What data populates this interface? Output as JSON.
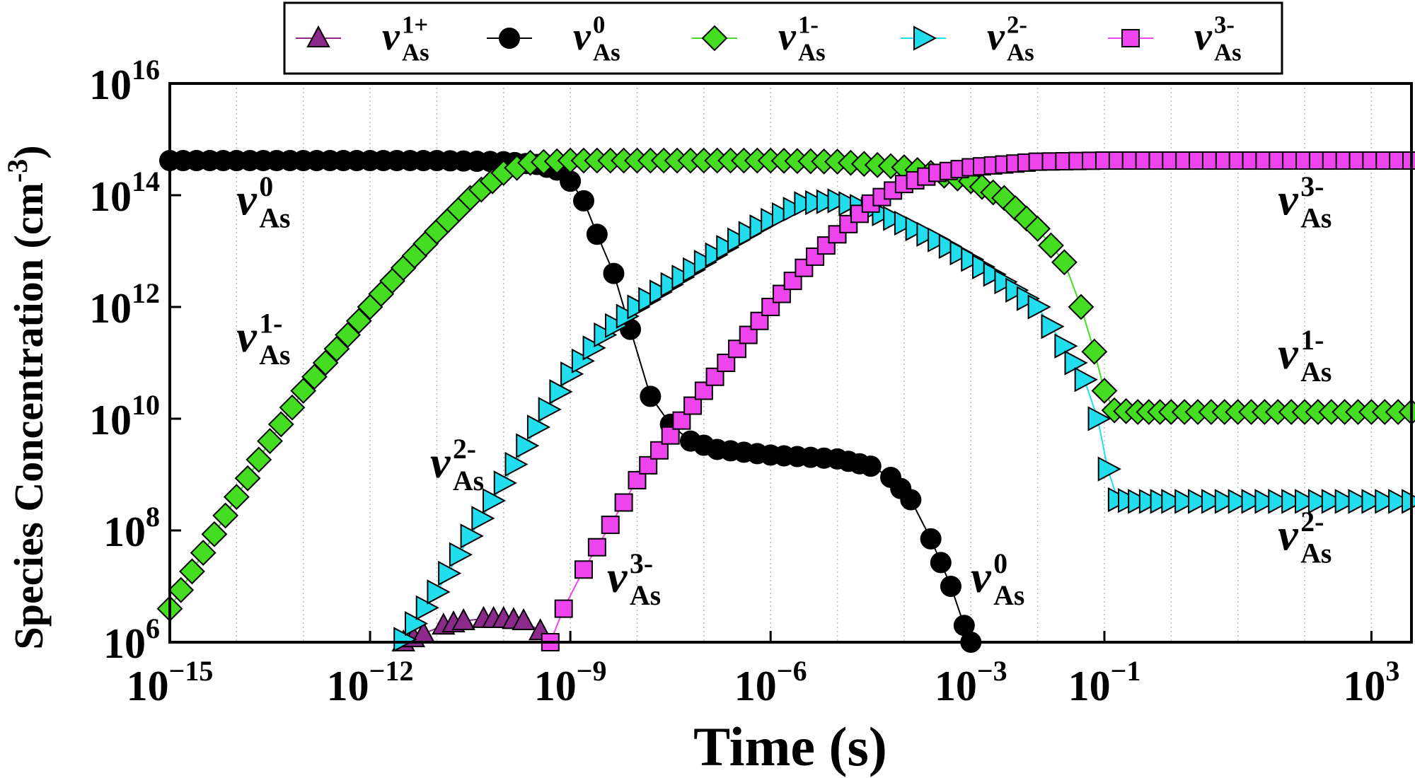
{
  "chart_data": {
    "type": "scatter",
    "title": "",
    "xlabel": "Time (s)",
    "ylabel": "Species Concentration (cm",
    "ylabel_sup": "-3",
    "ylabel_close": ")",
    "xscale": "log",
    "yscale": "log",
    "xlim_exp": [
      -15,
      3.6
    ],
    "ylim_exp": [
      6,
      16
    ],
    "grid": "vertical-dotted",
    "legend_position": "top",
    "x_ticks": [
      {
        "exp": -15,
        "label": "−15"
      },
      {
        "exp": -12,
        "label": "−12"
      },
      {
        "exp": -9,
        "label": "−9"
      },
      {
        "exp": -6,
        "label": "−6"
      },
      {
        "exp": -3,
        "label": "−3"
      },
      {
        "exp": -1,
        "label": "−1"
      },
      {
        "exp": 3,
        "label": "3"
      }
    ],
    "y_ticks": [
      {
        "exp": 6,
        "label": "6"
      },
      {
        "exp": 8,
        "label": "8"
      },
      {
        "exp": 10,
        "label": "10"
      },
      {
        "exp": 12,
        "label": "12"
      },
      {
        "exp": 14,
        "label": "14"
      },
      {
        "exp": 16,
        "label": "16"
      }
    ],
    "series": [
      {
        "name": "v_As^1+",
        "symbol": "v",
        "sub": "As",
        "sup": "1+",
        "marker": "triangle-up",
        "color": "#8B2A8B",
        "line_color": "#8B2A8B",
        "points": [
          [
            -11.5,
            6.0
          ],
          [
            -11.2,
            6.15
          ],
          [
            -10.9,
            6.3
          ],
          [
            -10.6,
            6.38
          ],
          [
            -10.3,
            6.42
          ],
          [
            -10.0,
            6.42
          ],
          [
            -9.7,
            6.38
          ],
          [
            -9.45,
            6.2
          ]
        ]
      },
      {
        "name": "v_As^0",
        "symbol": "v",
        "sub": "As",
        "sup": "0",
        "marker": "circle",
        "color": "#000000",
        "line_color": "#000000",
        "points": [
          [
            -15,
            14.62
          ],
          [
            -14,
            14.62
          ],
          [
            -13,
            14.62
          ],
          [
            -12,
            14.62
          ],
          [
            -11,
            14.62
          ],
          [
            -10,
            14.6
          ],
          [
            -9.5,
            14.55
          ],
          [
            -9.2,
            14.45
          ],
          [
            -9.0,
            14.25
          ],
          [
            -8.8,
            13.9
          ],
          [
            -8.6,
            13.3
          ],
          [
            -8.35,
            12.6
          ],
          [
            -8.1,
            11.6
          ],
          [
            -7.8,
            10.4
          ],
          [
            -7.5,
            9.9
          ],
          [
            -7.2,
            9.6
          ],
          [
            -6.8,
            9.45
          ],
          [
            -6.0,
            9.35
          ],
          [
            -5.0,
            9.28
          ],
          [
            -4.5,
            9.15
          ],
          [
            -4.2,
            8.95
          ],
          [
            -3.9,
            8.55
          ],
          [
            -3.6,
            7.85
          ],
          [
            -3.3,
            7.0
          ],
          [
            -3.1,
            6.3
          ],
          [
            -3.0,
            6.0
          ]
        ]
      },
      {
        "name": "v_As^1-",
        "symbol": "v",
        "sub": "As",
        "sup": "1-",
        "marker": "diamond",
        "color": "#44DD22",
        "line_color": "#44DD22",
        "points": [
          [
            -15,
            6.6
          ],
          [
            -14.5,
            7.6
          ],
          [
            -14.0,
            8.6
          ],
          [
            -13.5,
            9.6
          ],
          [
            -13.0,
            10.5
          ],
          [
            -12.5,
            11.25
          ],
          [
            -12.0,
            12.0
          ],
          [
            -11.5,
            12.7
          ],
          [
            -11.0,
            13.35
          ],
          [
            -10.5,
            13.95
          ],
          [
            -10.0,
            14.4
          ],
          [
            -9.6,
            14.58
          ],
          [
            -9,
            14.62
          ],
          [
            -8,
            14.62
          ],
          [
            -7,
            14.62
          ],
          [
            -6,
            14.62
          ],
          [
            -5,
            14.6
          ],
          [
            -4,
            14.5
          ],
          [
            -3,
            14.25
          ],
          [
            -2.5,
            13.95
          ],
          [
            -2.0,
            13.4
          ],
          [
            -1.6,
            12.8
          ],
          [
            -1.35,
            12.0
          ],
          [
            -1.15,
            11.2
          ],
          [
            -1.0,
            10.5
          ],
          [
            -0.85,
            10.15
          ],
          [
            -0.5,
            10.12
          ],
          [
            0,
            10.12
          ],
          [
            1,
            10.12
          ],
          [
            2,
            10.12
          ],
          [
            3,
            10.12
          ],
          [
            3.6,
            10.12
          ]
        ]
      },
      {
        "name": "v_As^2-",
        "symbol": "v",
        "sub": "As",
        "sup": "2-",
        "marker": "triangle-right",
        "color": "#22DDEE",
        "line_color": "#22DDEE",
        "points": [
          [
            -11.5,
            6.05
          ],
          [
            -11.0,
            6.9
          ],
          [
            -10.5,
            7.9
          ],
          [
            -10.0,
            8.85
          ],
          [
            -9.5,
            9.85
          ],
          [
            -9.0,
            10.8
          ],
          [
            -8.5,
            11.5
          ],
          [
            -8.0,
            12.0
          ],
          [
            -7.5,
            12.4
          ],
          [
            -7.0,
            12.8
          ],
          [
            -6.5,
            13.2
          ],
          [
            -6.0,
            13.55
          ],
          [
            -5.5,
            13.85
          ],
          [
            -5.0,
            13.9
          ],
          [
            -4.5,
            13.75
          ],
          [
            -4.0,
            13.5
          ],
          [
            -3.5,
            13.2
          ],
          [
            -3.0,
            12.85
          ],
          [
            -2.5,
            12.45
          ],
          [
            -2.0,
            12.0
          ],
          [
            -1.6,
            11.3
          ],
          [
            -1.3,
            10.7
          ],
          [
            -1.1,
            10.0
          ],
          [
            -0.95,
            9.1
          ],
          [
            -0.8,
            8.55
          ],
          [
            -0.5,
            8.52
          ],
          [
            0,
            8.52
          ],
          [
            1,
            8.52
          ],
          [
            2,
            8.52
          ],
          [
            3,
            8.52
          ],
          [
            3.6,
            8.52
          ]
        ]
      },
      {
        "name": "v_As^3-",
        "symbol": "v",
        "sub": "As",
        "sup": "3-",
        "marker": "square",
        "color": "#EE44EE",
        "line_color": "#EE44EE",
        "points": [
          [
            -9.3,
            6.0
          ],
          [
            -9.1,
            6.6
          ],
          [
            -8.8,
            7.3
          ],
          [
            -8.4,
            8.1
          ],
          [
            -8.0,
            8.9
          ],
          [
            -7.5,
            9.7
          ],
          [
            -7.0,
            10.5
          ],
          [
            -6.5,
            11.25
          ],
          [
            -6.0,
            12.0
          ],
          [
            -5.5,
            12.7
          ],
          [
            -5.0,
            13.3
          ],
          [
            -4.5,
            13.85
          ],
          [
            -4.0,
            14.2
          ],
          [
            -3.5,
            14.4
          ],
          [
            -3.0,
            14.5
          ],
          [
            -2.5,
            14.55
          ],
          [
            -2.0,
            14.6
          ],
          [
            -1.0,
            14.62
          ],
          [
            0,
            14.62
          ],
          [
            1,
            14.62
          ],
          [
            2,
            14.62
          ],
          [
            3,
            14.62
          ],
          [
            3.6,
            14.62
          ]
        ]
      }
    ],
    "annotations": [
      {
        "sup": "0",
        "sub": "As",
        "at": [
          -14.0,
          13.65
        ]
      },
      {
        "sup": "1-",
        "sub": "As",
        "at": [
          -14.0,
          11.2
        ]
      },
      {
        "sup": "2-",
        "sub": "As",
        "at": [
          -11.1,
          8.95
        ]
      },
      {
        "sup": "3-",
        "sub": "As",
        "at": [
          -8.45,
          6.9
        ]
      },
      {
        "sup": "0",
        "sub": "As",
        "at": [
          -3.0,
          6.9
        ]
      },
      {
        "sup": "3-",
        "sub": "As",
        "at": [
          1.6,
          13.65
        ]
      },
      {
        "sup": "1-",
        "sub": "As",
        "at": [
          1.6,
          10.9
        ]
      },
      {
        "sup": "2-",
        "sub": "As",
        "at": [
          1.6,
          7.65
        ]
      }
    ]
  }
}
